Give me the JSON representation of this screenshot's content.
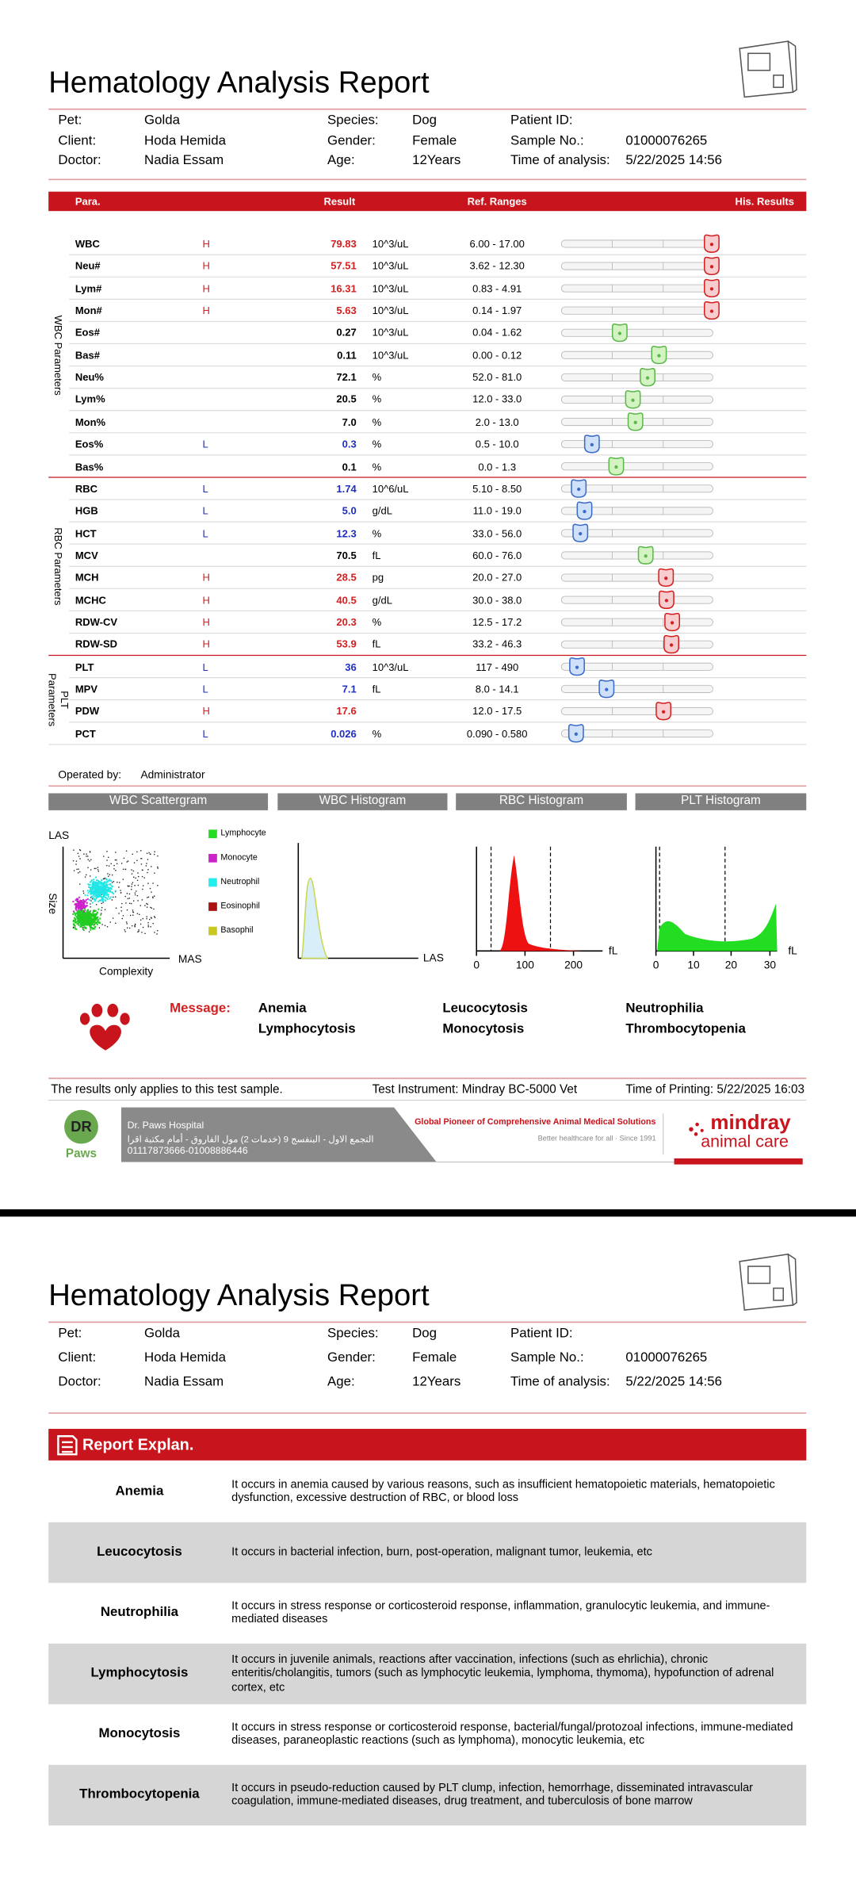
{
  "header": {
    "title": "Hematology Analysis Report",
    "info": [
      [
        {
          "label": "Pet:",
          "value": "Golda"
        },
        {
          "label": "Species:",
          "value": "Dog"
        },
        {
          "label": "Patient ID:"
        }
      ],
      [
        {
          "label": "Client:",
          "value": "Hoda Hemida"
        },
        {
          "label": "Gender:",
          "value": "Female"
        },
        {
          "label": "Sample No.:",
          "value": "01000076265"
        }
      ],
      [
        {
          "label": "Doctor:",
          "value": "Nadia Essam"
        },
        {
          "label": "Age:",
          "value": "12Years"
        },
        {
          "label": "Time of analysis:",
          "value": "5/22/2025 14:56"
        }
      ]
    ]
  },
  "table": {
    "columns": [
      "Para.",
      "Result",
      "Ref. Ranges",
      "His. Results"
    ],
    "sections": [
      {
        "label": "WBC Parameters",
        "rows": [
          {
            "name": "WBC",
            "flag": "H",
            "result": "79.83",
            "unit": "10^3/uL",
            "ref": "6.00 - 17.00"
          },
          {
            "name": "Neu#",
            "flag": "H",
            "result": "57.51",
            "unit": "10^3/uL",
            "ref": "3.62 - 12.30"
          },
          {
            "name": "Lym#",
            "flag": "H",
            "result": "16.31",
            "unit": "10^3/uL",
            "ref": "0.83 - 4.91"
          },
          {
            "name": "Mon#",
            "flag": "H",
            "result": "5.63",
            "unit": "10^3/uL",
            "ref": "0.14 - 1.97"
          },
          {
            "name": "Eos#",
            "result": "0.27",
            "unit": "10^3/uL",
            "ref": "0.04 - 1.62"
          },
          {
            "name": "Bas#",
            "result": "0.11",
            "unit": "10^3/uL",
            "ref": "0.00 - 0.12"
          },
          {
            "name": "Neu%",
            "result": "72.1",
            "unit": "%",
            "ref": "52.0 - 81.0"
          },
          {
            "name": "Lym%",
            "result": "20.5",
            "unit": "%",
            "ref": "12.0 - 33.0"
          },
          {
            "name": "Mon%",
            "result": "7.0",
            "unit": "%",
            "ref": "2.0 - 13.0"
          },
          {
            "name": "Eos%",
            "flag": "L",
            "result": "0.3",
            "unit": "%",
            "ref": "0.5 - 10.0"
          },
          {
            "name": "Bas%",
            "result": "0.1",
            "unit": "%",
            "ref": "0.0 - 1.3"
          }
        ]
      },
      {
        "label": "RBC Parameters",
        "rows": [
          {
            "name": "RBC",
            "flag": "L",
            "result": "1.74",
            "unit": "10^6/uL",
            "ref": "5.10 - 8.50"
          },
          {
            "name": "HGB",
            "flag": "L",
            "result": "5.0",
            "unit": "g/dL",
            "ref": "11.0 - 19.0"
          },
          {
            "name": "HCT",
            "flag": "L",
            "result": "12.3",
            "unit": "%",
            "ref": "33.0 - 56.0"
          },
          {
            "name": "MCV",
            "result": "70.5",
            "unit": "fL",
            "ref": "60.0 - 76.0"
          },
          {
            "name": "MCH",
            "flag": "H",
            "result": "28.5",
            "unit": "pg",
            "ref": "20.0 - 27.0"
          },
          {
            "name": "MCHC",
            "flag": "H",
            "result": "40.5",
            "unit": "g/dL",
            "ref": "30.0 - 38.0"
          },
          {
            "name": "RDW-CV",
            "flag": "H",
            "result": "20.3",
            "unit": "%",
            "ref": "12.5 - 17.2"
          },
          {
            "name": "RDW-SD",
            "flag": "H",
            "result": "53.9",
            "unit": "fL",
            "ref": "33.2 - 46.3"
          }
        ]
      },
      {
        "label": "PLT Parameters",
        "rows": [
          {
            "name": "PLT",
            "flag": "L",
            "result": "36",
            "unit": "10^3/uL",
            "ref": "117 - 490"
          },
          {
            "name": "MPV",
            "flag": "L",
            "result": "7.1",
            "unit": "fL",
            "ref": "8.0 - 14.1"
          },
          {
            "name": "PDW",
            "flag": "H",
            "result": "17.6",
            "ref": "12.0 - 17.5"
          },
          {
            "name": "PCT",
            "flag": "L",
            "result": "0.026",
            "unit": "%",
            "ref": "0.090 - 0.580"
          }
        ]
      }
    ]
  },
  "operator": {
    "label": "Operated by:",
    "value": "Administrator"
  },
  "graphs": {
    "wbc_scatter": {
      "title": "WBC Scattergram",
      "y_top": "LAS",
      "y_label": "Size",
      "x_label": "Complexity",
      "x_right": "MAS",
      "legend": [
        "Lymphocyte",
        "Monocyte",
        "Neutrophil",
        "Eosinophil",
        "Basophil"
      ]
    },
    "wbc_hist": {
      "title": "WBC Histogram",
      "x_label": "LAS"
    },
    "rbc_hist": {
      "title": "RBC Histogram",
      "ticks": [
        "0",
        "100",
        "200"
      ],
      "unit": "fL"
    },
    "plt_hist": {
      "title": "PLT Histogram",
      "ticks": [
        "0",
        "10",
        "20",
        "30"
      ],
      "unit": "fL"
    }
  },
  "message": {
    "label": "Message:",
    "items": [
      "Anemia",
      "Leucocytosis",
      "Neutrophilia",
      "Lymphocytosis",
      "Monocytosis",
      "Thrombocytopenia"
    ]
  },
  "footer": {
    "note": "The results only applies to this test sample.",
    "instrument": "Test Instrument: Mindray BC-5000 Vet",
    "printed": "Time of Printing: 5/22/2025 16:03"
  },
  "banner": {
    "logo_mark": "DR",
    "logo_name": "Paws",
    "hospital": "Dr. Paws Hospital",
    "address": "التجمع الاول - البنفسج 9 (خدمات 2) مول الفاروق - أمام مكتبة اقرا",
    "phone": "01117873666-01008886446",
    "slogan": "Global Pioneer of Comprehensive Animal Medical Solutions",
    "tagline": "Better healthcare for all  ·  Since 1991",
    "brand": "mindray",
    "brand_sub": "animal care"
  },
  "explanation": {
    "title": "Report Explan.",
    "rows": [
      {
        "term": "Anemia",
        "text": "It occurs in anemia caused by various reasons, such as insufficient hematopoietic materials, hematopoietic dysfunction, excessive destruction of RBC, or blood loss"
      },
      {
        "term": "Leucocytosis",
        "text": "It occurs in bacterial infection, burn, post-operation, malignant tumor, leukemia, etc"
      },
      {
        "term": "Neutrophilia",
        "text": "It occurs in stress response or corticosteroid response, inflammation, granulocytic leukemia, and immune-mediated diseases"
      },
      {
        "term": "Lymphocytosis",
        "text": "It occurs in juvenile animals, reactions after vaccination, infections (such as ehrlichia), chronic enteritis/cholangitis, tumors (such as lymphocytic leukemia, lymphoma, thymoma), hypofunction of adrenal cortex, etc"
      },
      {
        "term": "Monocytosis",
        "text": "It occurs in stress response or corticosteroid response, bacterial/fungal/protozoal infections, immune-mediated diseases, paraneoplastic reactions (such as lymphoma), monocytic leukemia, etc"
      },
      {
        "term": "Thrombocytopenia",
        "text": "It occurs in pseudo-reduction caused by PLT clump, infection, hemorrhage, disseminated intravascular coagulation, immune-mediated diseases, drug treatment, and tuberculosis of bone marrow"
      }
    ]
  }
}
